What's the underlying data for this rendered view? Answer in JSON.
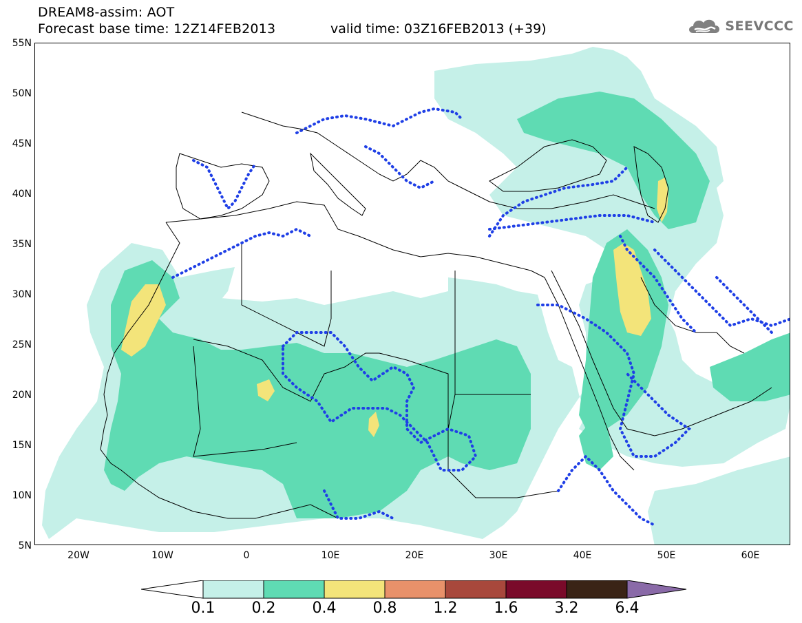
{
  "title": {
    "line1": "DREAM8-assim: AOT",
    "line2": "Forecast base time: 12Z14FEB2013",
    "valid": "valid time: 03Z16FEB2013 (+39)"
  },
  "logo": {
    "text": "SEEVCCC",
    "icon": "cloud-icon"
  },
  "map": {
    "lat_range": [
      5,
      55
    ],
    "lon_range": [
      -25,
      65
    ],
    "lat_ticks": [
      "55N",
      "50N",
      "45N",
      "40N",
      "35N",
      "30N",
      "25N",
      "20N",
      "15N",
      "10N",
      "5N"
    ],
    "lon_ticks": [
      "20W",
      "10W",
      "0",
      "10E",
      "20E",
      "30E",
      "40E",
      "50E",
      "60E"
    ],
    "field": "AOT"
  },
  "colorbar": {
    "labels": [
      "0.1",
      "0.2",
      "0.4",
      "0.8",
      "1.2",
      "1.6",
      "3.2",
      "6.4"
    ],
    "colors": [
      "#ffffff",
      "#c5f0e8",
      "#5fdbb3",
      "#f3e47a",
      "#e8916a",
      "#a8483c",
      "#7a0a2a",
      "#3a2416",
      "#8a6aa8"
    ]
  },
  "colors": {
    "level1": "#c5f0e8",
    "level2": "#5fdbb3",
    "level3": "#f3e47a",
    "contour": "#1f3fe6",
    "border": "#000000"
  }
}
